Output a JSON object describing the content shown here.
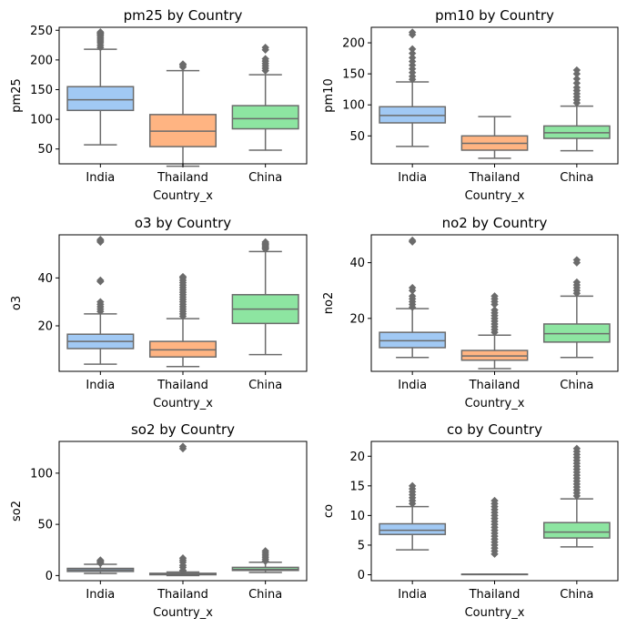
{
  "figure": {
    "title": ""
  },
  "chart_data": [
    {
      "type": "box",
      "title": "pm25 by Country",
      "xlabel": "Country_x",
      "ylabel": "pm25",
      "categories": [
        "India",
        "Thailand",
        "China"
      ],
      "ylim": [
        25,
        255
      ],
      "yticks": [
        50,
        100,
        150,
        200,
        250
      ],
      "boxes": [
        {
          "category": "India",
          "min": 57,
          "q1": 115,
          "median": 133,
          "q3": 155,
          "max": 218,
          "outliers": [
            221,
            225,
            229,
            232,
            235,
            238,
            241,
            243,
            245,
            247
          ]
        },
        {
          "category": "Thailand",
          "min": 21,
          "q1": 54,
          "median": 80,
          "q3": 108,
          "max": 182,
          "outliers": [
            188,
            191,
            193
          ]
        },
        {
          "category": "China",
          "min": 48,
          "q1": 84,
          "median": 101,
          "q3": 123,
          "max": 175,
          "outliers": [
            182,
            186,
            190,
            194,
            198,
            202,
            217,
            221
          ]
        }
      ]
    },
    {
      "type": "box",
      "title": "pm10 by Country",
      "xlabel": "Country_x",
      "ylabel": "pm10",
      "categories": [
        "India",
        "Thailand",
        "China"
      ],
      "ylim": [
        5,
        225
      ],
      "yticks": [
        50,
        100,
        150,
        200
      ],
      "boxes": [
        {
          "category": "India",
          "min": 33,
          "q1": 71,
          "median": 83,
          "q3": 97,
          "max": 137,
          "outliers": [
            141,
            146,
            152,
            158,
            164,
            170,
            176,
            183,
            190,
            213,
            217
          ]
        },
        {
          "category": "Thailand",
          "min": 14,
          "q1": 27,
          "median": 38,
          "q3": 50,
          "max": 81,
          "outliers": []
        },
        {
          "category": "China",
          "min": 26,
          "q1": 46,
          "median": 55,
          "q3": 66,
          "max": 98,
          "outliers": [
            103,
            108,
            113,
            118,
            123,
            128,
            135,
            142,
            150,
            156
          ]
        }
      ]
    },
    {
      "type": "box",
      "title": "o3 by Country",
      "xlabel": "Country_x",
      "ylabel": "o3",
      "categories": [
        "India",
        "Thailand",
        "China"
      ],
      "ylim": [
        1,
        58
      ],
      "yticks": [
        20,
        40
      ],
      "boxes": [
        {
          "category": "India",
          "min": 4,
          "q1": 10.5,
          "median": 13.5,
          "q3": 16.5,
          "max": 25,
          "outliers": [
            26,
            27,
            28,
            29,
            30,
            38.5,
            39,
            55,
            55.5,
            56
          ]
        },
        {
          "category": "Thailand",
          "min": 3,
          "q1": 7,
          "median": 10,
          "q3": 13.5,
          "max": 23,
          "outliers": [
            24,
            25,
            26,
            27,
            28,
            29,
            30,
            31,
            32,
            33,
            34,
            35,
            36,
            37,
            38,
            39,
            40,
            40.5
          ]
        },
        {
          "category": "China",
          "min": 8,
          "q1": 21,
          "median": 27,
          "q3": 33,
          "max": 51,
          "outliers": [
            52,
            52.5,
            53,
            53.5,
            54,
            54.5,
            55
          ]
        }
      ]
    },
    {
      "type": "box",
      "title": "no2 by Country",
      "xlabel": "Country_x",
      "ylabel": "no2",
      "categories": [
        "India",
        "Thailand",
        "China"
      ],
      "ylim": [
        1,
        50
      ],
      "yticks": [
        20,
        40
      ],
      "boxes": [
        {
          "category": "India",
          "min": 6,
          "q1": 9.5,
          "median": 12,
          "q3": 15,
          "max": 23.5,
          "outliers": [
            24,
            25,
            26,
            27,
            28,
            30,
            31,
            47.5,
            48
          ]
        },
        {
          "category": "Thailand",
          "min": 2,
          "q1": 5,
          "median": 6.5,
          "q3": 8.5,
          "max": 14,
          "outliers": [
            15,
            16,
            17,
            18,
            19,
            20,
            21,
            22,
            23,
            25,
            26,
            27,
            28
          ]
        },
        {
          "category": "China",
          "min": 6,
          "q1": 11.5,
          "median": 14.5,
          "q3": 18,
          "max": 28,
          "outliers": [
            29,
            30,
            31,
            32,
            33,
            40,
            41
          ]
        }
      ]
    },
    {
      "type": "box",
      "title": "so2 by Country",
      "xlabel": "Country_x",
      "ylabel": "so2",
      "categories": [
        "India",
        "Thailand",
        "China"
      ],
      "ylim": [
        -5,
        131
      ],
      "yticks": [
        0,
        50,
        100
      ],
      "boxes": [
        {
          "category": "India",
          "min": 2,
          "q1": 4,
          "median": 5.5,
          "q3": 7,
          "max": 11,
          "outliers": [
            12,
            13,
            14,
            15
          ]
        },
        {
          "category": "Thailand",
          "min": 0,
          "q1": 0.8,
          "median": 1.2,
          "q3": 2.2,
          "max": 3.5,
          "outliers": [
            4,
            5,
            8,
            10,
            13,
            15,
            17,
            124,
            126
          ]
        },
        {
          "category": "China",
          "min": 3,
          "q1": 5,
          "median": 6,
          "q3": 8,
          "max": 13,
          "outliers": [
            14,
            16,
            18,
            20,
            22,
            24
          ]
        }
      ]
    },
    {
      "type": "box",
      "title": "co by Country",
      "xlabel": "Country_x",
      "ylabel": "co",
      "categories": [
        "India",
        "Thailand",
        "China"
      ],
      "ylim": [
        -1,
        22.5
      ],
      "yticks": [
        0,
        5,
        10,
        15,
        20
      ],
      "boxes": [
        {
          "category": "India",
          "min": 4.2,
          "q1": 6.8,
          "median": 7.5,
          "q3": 8.6,
          "max": 11.5,
          "outliers": [
            12,
            12.5,
            13,
            13.5,
            14,
            14.5,
            15
          ]
        },
        {
          "category": "Thailand",
          "min": 0.1,
          "q1": 0.1,
          "median": 0.1,
          "q3": 0.1,
          "max": 0.1,
          "outliers": [
            3.5,
            4,
            4.5,
            5,
            5.5,
            6,
            6.5,
            7,
            7.5,
            8,
            8.5,
            9,
            9.5,
            10,
            10.5,
            11,
            11.5,
            12,
            12.5
          ]
        },
        {
          "category": "China",
          "min": 4.7,
          "q1": 6.2,
          "median": 7.2,
          "q3": 8.8,
          "max": 12.8,
          "outliers": [
            13.3,
            13.8,
            14.3,
            14.8,
            15.3,
            15.8,
            16.3,
            16.8,
            17.3,
            17.8,
            18.3,
            18.8,
            19.3,
            19.8,
            20.3,
            20.8,
            21.3
          ]
        }
      ]
    }
  ],
  "colors": {
    "India": "#a1c9f4",
    "Thailand": "#ffb482",
    "China": "#8de5a1",
    "line": "#6b6b6b",
    "axis": "#000000",
    "background": "#ffffff"
  }
}
